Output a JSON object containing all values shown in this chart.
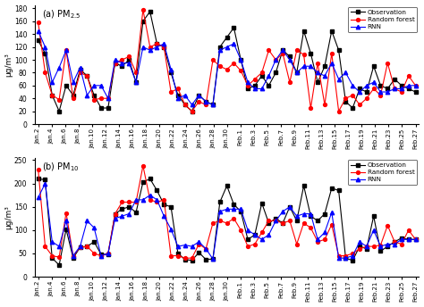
{
  "pm25": {
    "observation": [
      130,
      110,
      45,
      20,
      60,
      45,
      85,
      75,
      45,
      25,
      25,
      95,
      90,
      100,
      65,
      160,
      175,
      125,
      120,
      80,
      45,
      30,
      20,
      45,
      35,
      30,
      120,
      135,
      150,
      100,
      55,
      60,
      75,
      60,
      80,
      115,
      105,
      80,
      145,
      110,
      65,
      90,
      145,
      115,
      35,
      25,
      55,
      50,
      90,
      60,
      55,
      70,
      60,
      55,
      50
    ],
    "random_forest": [
      158,
      80,
      45,
      38,
      115,
      40,
      80,
      75,
      38,
      40,
      40,
      95,
      100,
      105,
      80,
      178,
      120,
      125,
      120,
      50,
      55,
      30,
      20,
      35,
      30,
      100,
      90,
      85,
      95,
      83,
      60,
      70,
      80,
      115,
      100,
      110,
      65,
      115,
      108,
      25,
      95,
      30,
      110,
      20,
      40,
      45,
      30,
      40,
      55,
      45,
      95,
      55,
      50,
      75,
      60
    ],
    "rnn": [
      145,
      120,
      65,
      88,
      115,
      65,
      88,
      45,
      60,
      60,
      40,
      100,
      95,
      95,
      65,
      120,
      115,
      120,
      125,
      85,
      40,
      45,
      30,
      45,
      35,
      30,
      115,
      120,
      125,
      100,
      65,
      55,
      55,
      75,
      100,
      115,
      100,
      80,
      90,
      90,
      80,
      75,
      95,
      70,
      80,
      60,
      50,
      60,
      65,
      50,
      50,
      55,
      55,
      60,
      60
    ]
  },
  "pm10": {
    "observation": [
      210,
      208,
      40,
      25,
      102,
      40,
      63,
      65,
      75,
      48,
      48,
      135,
      145,
      150,
      138,
      203,
      210,
      185,
      155,
      150,
      50,
      37,
      35,
      52,
      37,
      38,
      160,
      195,
      155,
      140,
      80,
      90,
      158,
      115,
      125,
      115,
      150,
      120,
      195,
      130,
      120,
      135,
      190,
      185,
      40,
      35,
      65,
      60,
      130,
      55,
      65,
      75,
      83,
      80,
      80
    ],
    "random_forest": [
      230,
      65,
      45,
      42,
      137,
      45,
      63,
      65,
      50,
      45,
      50,
      135,
      160,
      160,
      160,
      238,
      165,
      160,
      165,
      45,
      45,
      40,
      40,
      70,
      60,
      115,
      120,
      115,
      125,
      100,
      65,
      70,
      95,
      120,
      120,
      115,
      120,
      70,
      115,
      105,
      75,
      80,
      112,
      45,
      45,
      50,
      60,
      65,
      65,
      68,
      110,
      75,
      70,
      100,
      80
    ],
    "rnn": [
      170,
      200,
      75,
      65,
      120,
      45,
      65,
      120,
      105,
      45,
      50,
      125,
      130,
      135,
      165,
      165,
      175,
      165,
      130,
      102,
      65,
      68,
      65,
      75,
      60,
      38,
      140,
      145,
      145,
      145,
      100,
      90,
      80,
      90,
      120,
      140,
      150,
      130,
      135,
      135,
      80,
      95,
      138,
      40,
      40,
      45,
      75,
      65,
      100,
      65,
      70,
      70,
      80,
      80,
      80
    ]
  },
  "x_labels": [
    "Jan.2",
    "Jan.4",
    "Jan.6",
    "Jan.8",
    "Jan.10",
    "Jan.12",
    "Jan.14",
    "Jan.16",
    "Jan.18",
    "Jan.20",
    "Jan.22",
    "Jan.24",
    "Jan.26",
    "Jan.28",
    "Jan.30",
    "Feb.1",
    "Feb.3",
    "Feb.5",
    "Feb.7",
    "Feb.9",
    "Feb.11",
    "Feb.13",
    "Feb.15",
    "Feb.17",
    "Feb.19",
    "Feb.21",
    "Feb.23",
    "Feb.25",
    "Feb.27"
  ],
  "pm25_ylim": [
    0,
    185
  ],
  "pm10_ylim": [
    0,
    255
  ],
  "pm25_yticks": [
    0,
    20,
    40,
    60,
    80,
    100,
    120,
    140,
    160,
    180
  ],
  "pm10_yticks": [
    0,
    50,
    100,
    150,
    200,
    250
  ],
  "obs_color": "black",
  "rf_color": "red",
  "rnn_color": "blue",
  "ylabel": "μg/m³",
  "legend_labels": [
    "Observation",
    "Random forest",
    "RNN"
  ],
  "title_a": "(a) PM$_{2.5}$",
  "title_b": "(b) PM$_{10}$"
}
